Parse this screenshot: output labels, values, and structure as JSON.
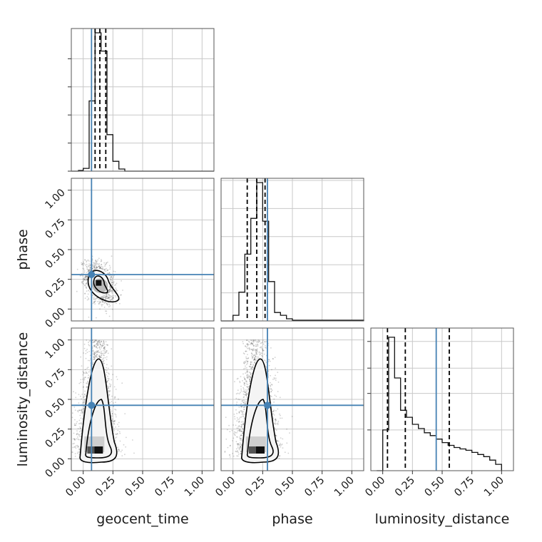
{
  "chart_data": {
    "type": "corner",
    "parameters": [
      "geocent_time",
      "phase",
      "luminosity_distance"
    ],
    "axis_labels": {
      "x": [
        "geocent_time",
        "phase",
        "luminosity_distance"
      ],
      "y": [
        "phase",
        "luminosity_distance"
      ]
    },
    "range": [
      -0.1,
      1.1
    ],
    "ticks": [
      0.0,
      0.25,
      0.5,
      0.75,
      1.0
    ],
    "tick_labels": [
      "0.00",
      "0.25",
      "0.50",
      "0.75",
      "1.00"
    ],
    "grid": true,
    "colors": {
      "truth": "#4682b4",
      "hist": "#111111",
      "quantile": "#000000",
      "points": "#000000"
    },
    "truths": {
      "geocent_time": 0.07,
      "phase": 0.29,
      "luminosity_distance": 0.45
    },
    "marginals": {
      "geocent_time": {
        "bin_edges": [
          -0.1,
          -0.04,
          0.0,
          0.05,
          0.1,
          0.15,
          0.2,
          0.25,
          0.3,
          0.35,
          0.4,
          1.1
        ],
        "heights": [
          0.0,
          0.005,
          0.02,
          0.5,
          0.985,
          0.855,
          0.26,
          0.07,
          0.015,
          0.0,
          0.0
        ],
        "quantiles": [
          0.1,
          0.14,
          0.19
        ]
      },
      "phase": {
        "bin_edges": [
          -0.1,
          0.0,
          0.05,
          0.1,
          0.15,
          0.2,
          0.25,
          0.3,
          0.35,
          0.4,
          0.45,
          0.5,
          1.1
        ],
        "heights": [
          0.0,
          0.04,
          0.205,
          0.475,
          0.73,
          0.985,
          0.71,
          0.28,
          0.06,
          0.04,
          0.015,
          0.005
        ],
        "quantiles": [
          0.12,
          0.2,
          0.27
        ]
      },
      "luminosity_distance": {
        "bin_edges": [
          -0.05,
          0.0,
          0.05,
          0.1,
          0.15,
          0.2,
          0.25,
          0.3,
          0.35,
          0.4,
          0.45,
          0.5,
          0.55,
          0.6,
          0.65,
          0.7,
          0.75,
          0.8,
          0.85,
          0.9,
          0.95,
          1.0
        ],
        "heights": [
          0.0,
          0.29,
          0.95,
          0.66,
          0.43,
          0.38,
          0.33,
          0.3,
          0.27,
          0.25,
          0.225,
          0.2,
          0.18,
          0.165,
          0.155,
          0.145,
          0.13,
          0.115,
          0.1,
          0.075,
          0.045
        ],
        "quantiles": [
          0.04,
          0.19,
          0.56
        ]
      }
    },
    "joint": {
      "phase_vs_geocent_time": {
        "points_center": [
          0.14,
          0.22
        ],
        "points_spread": [
          0.06,
          0.1
        ],
        "density_peak": [
          0.13,
          0.22
        ]
      },
      "luminosity_distance_vs_geocent_time": {
        "points_center": [
          0.12,
          0.35
        ],
        "points_spread": [
          0.07,
          0.3
        ],
        "density_peak": [
          0.13,
          0.08
        ]
      },
      "luminosity_distance_vs_phase": {
        "points_center": [
          0.2,
          0.35
        ],
        "points_spread": [
          0.08,
          0.3
        ],
        "density_peak": [
          0.23,
          0.08
        ]
      }
    }
  }
}
